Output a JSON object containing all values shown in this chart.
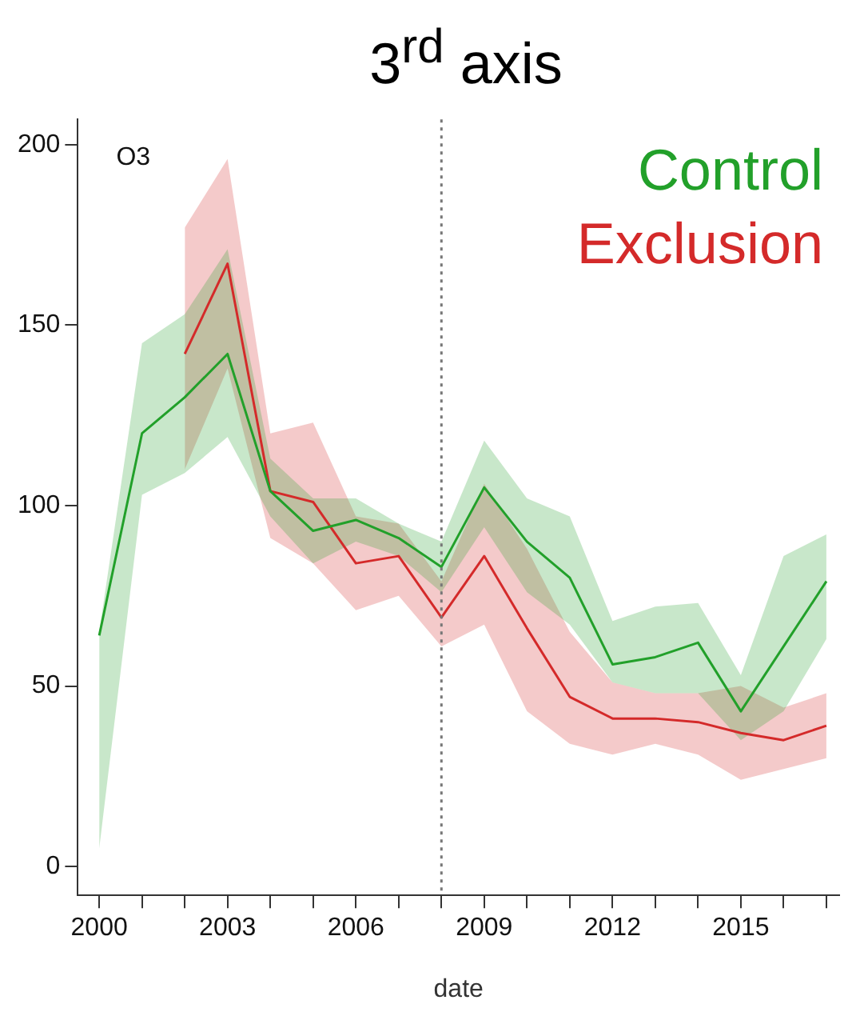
{
  "chart_data": {
    "type": "line",
    "title": "3$^{rd}$ axis",
    "xlabel": "date",
    "annotations": [
      "O3"
    ],
    "legend": "top right",
    "x": [
      2000,
      2001,
      2002,
      2003,
      2004,
      2005,
      2006,
      2007,
      2008,
      2009,
      2010,
      2011,
      2012,
      2013,
      2014,
      2015,
      2016,
      2017
    ],
    "series": [
      {
        "name": "Control",
        "color": "#22a02a",
        "values": [
          64,
          120,
          130,
          142,
          104,
          93,
          96,
          91,
          83,
          105,
          90,
          80,
          56,
          58,
          62,
          43,
          61,
          79
        ],
        "lower": [
          5,
          103,
          109,
          119,
          97,
          84,
          90,
          86,
          76,
          94,
          76,
          67,
          51,
          48,
          48,
          35,
          43,
          63
        ],
        "upper": [
          65,
          145,
          153,
          171,
          113,
          102,
          102,
          95,
          90,
          118,
          102,
          97,
          68,
          72,
          73,
          53,
          86,
          92
        ]
      },
      {
        "name": "Exclusion",
        "color": "#d42a2a",
        "values": [
          null,
          null,
          142,
          167,
          104,
          101,
          84,
          86,
          69,
          86,
          66,
          47,
          41,
          41,
          40,
          37,
          35,
          39
        ],
        "lower": [
          null,
          null,
          110,
          138,
          91,
          84,
          71,
          75,
          61,
          67,
          43,
          34,
          31,
          34,
          31,
          24,
          27,
          30
        ],
        "upper": [
          null,
          null,
          177,
          196,
          120,
          123,
          97,
          95,
          79,
          106,
          88,
          65,
          51,
          48,
          48,
          50,
          44,
          48
        ]
      }
    ],
    "xlim": [
      1999.5,
      2017.3
    ],
    "ylim": [
      -8,
      207
    ],
    "xticks": [
      2000,
      {
        "value": 2001,
        "label": null
      },
      {
        "value": 2002,
        "label": null
      },
      2003,
      {
        "value": 2004,
        "label": null
      },
      {
        "value": 2005,
        "label": null
      },
      2006,
      {
        "value": 2007,
        "label": null
      },
      {
        "value": 2008,
        "label": null
      },
      2009,
      {
        "value": 2010,
        "label": null
      },
      {
        "value": 2011,
        "label": null
      },
      2012,
      {
        "value": 2013,
        "label": null
      },
      {
        "value": 2014,
        "label": null
      },
      2015,
      {
        "value": 2016,
        "label": null
      },
      {
        "value": 2017,
        "label": null
      }
    ],
    "yticks": [
      0,
      50,
      100,
      150,
      200
    ],
    "ref_lines": [
      {
        "axis": "x",
        "value": 2008,
        "color": "#777777",
        "line_style": "dotted"
      }
    ],
    "grid": false,
    "marker": "none",
    "line_style": "solid"
  }
}
